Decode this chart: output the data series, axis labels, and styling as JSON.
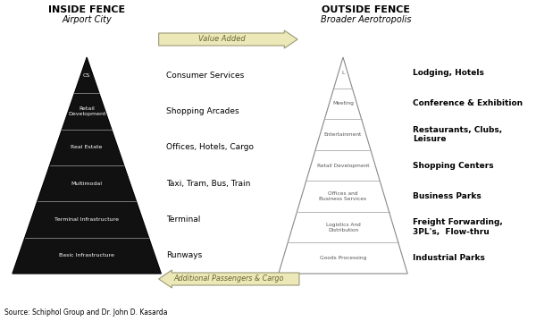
{
  "title_left": "INSIDE FENCE",
  "subtitle_left": "Airport City",
  "title_right": "OUTSIDE FENCE",
  "subtitle_right": "Broader Aerotropolis",
  "source": "Source: Schiphol Group and Dr. John D. Kasarda",
  "arrow_top_text": "Value Added",
  "arrow_bottom_text": "Additional Passengers & Cargo",
  "left_pyramid_labels": [
    "CS",
    "Retail\nDevelopment",
    "Real Estate",
    "Multimodal",
    "Terminal Infrastructure",
    "Basic Infrastructure"
  ],
  "left_pyramid_right_labels": [
    "Consumer Services",
    "Shopping Arcades",
    "Offices, Hotels, Cargo",
    "Taxi, Tram, Bus, Train",
    "Terminal",
    "Runways"
  ],
  "right_pyramid_labels": [
    "L",
    "Meeting",
    "Entertainment",
    "Retail Development",
    "Offices and\nBusiness Services",
    "Logistics And\nDistribution",
    "Goods Processing"
  ],
  "right_pyramid_right_labels": [
    "Lodging, Hotels",
    "Conference & Exhibition",
    "Restaurants, Clubs,\nLeisure",
    "Shopping Centers",
    "Business Parks",
    "Freight Forwarding,\n3PL's,  Flow-thru",
    "Industrial Parks"
  ],
  "bg_color": "#ffffff",
  "left_pyramid_color": "#111111",
  "right_pyramid_color": "#ffffff",
  "right_pyramid_edge_color": "#888888",
  "arrow_color": "#ede8b8",
  "arrow_edge_color": "#999977"
}
